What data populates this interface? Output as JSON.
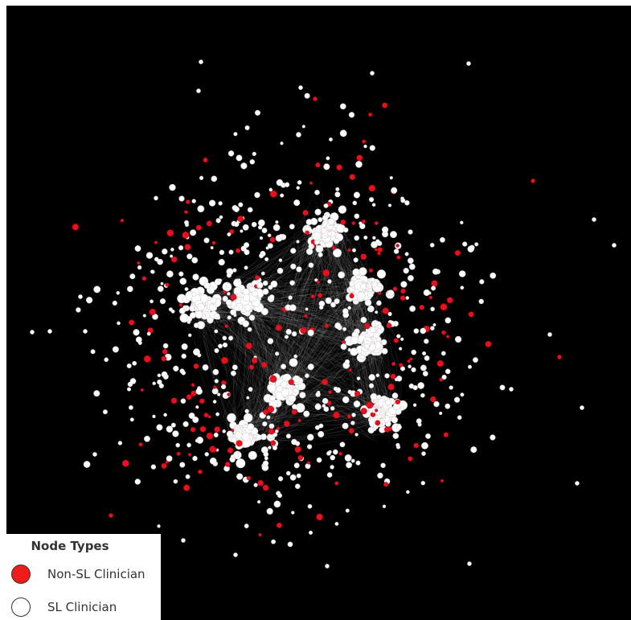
{
  "legend": {
    "title": "Node Types",
    "items": [
      {
        "label": "Non-SL Clinician",
        "color": "#f01c1c"
      },
      {
        "label": "SL Clinician",
        "color": "#ffffff"
      }
    ]
  },
  "colors": {
    "background": "#000000",
    "non_sl_node": "#e8101c",
    "sl_node": "#ffffff",
    "edge": "#ffffff"
  }
}
